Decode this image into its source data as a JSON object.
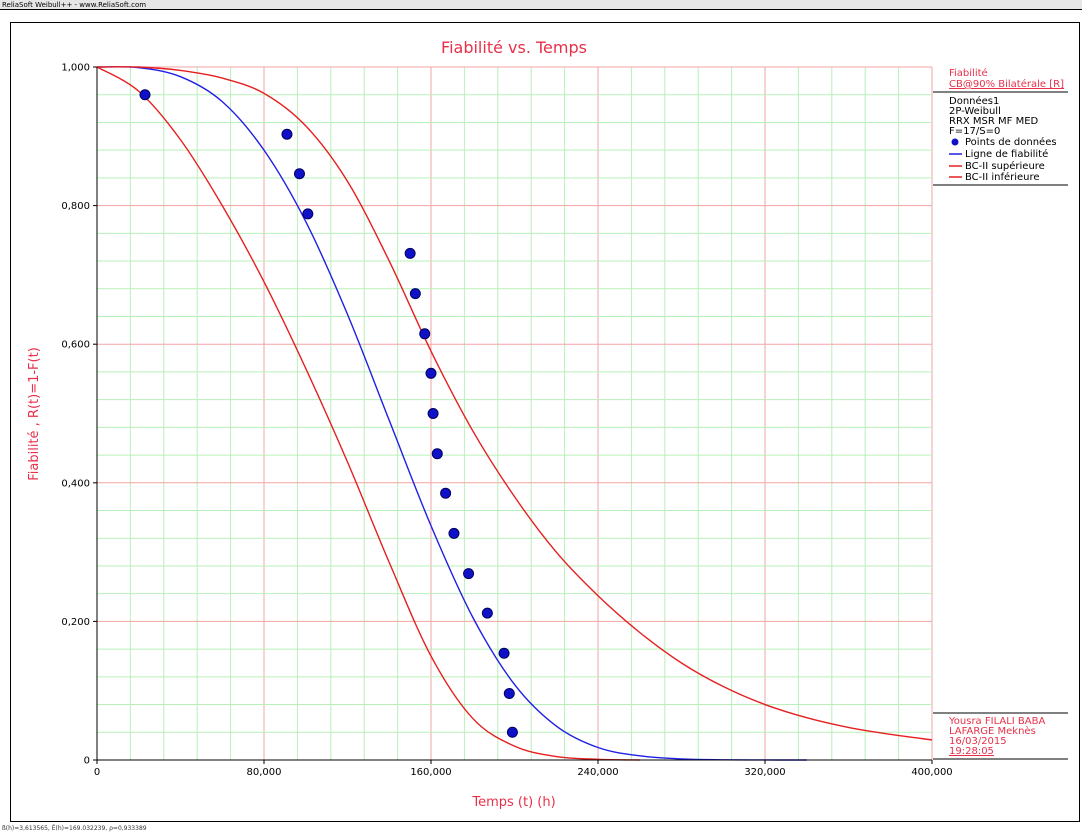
{
  "window": {
    "title_bar": "ReliaSoft Weibull++ - www.ReliaSoft.com",
    "status_bar": "ß(h)=3,613565, Ê(h)=169.032239, ρ=0,933389"
  },
  "colors": {
    "title": "#e8304a",
    "axis_label": "#e8304a",
    "minor_grid": "#b9f0b9",
    "major_grid": "#f2a4a4",
    "fit_line": "#1f1fe6",
    "bounds": "#e61f1f",
    "points_fill": "#1010c8",
    "points_edge": "#000060"
  },
  "legend": {
    "header1": "Fiabilité",
    "header2": "CB@90% Bilatérale [R]",
    "info": [
      "Données1",
      "2P-Weibull",
      "RRX MSR MF MED",
      "F=17/S=0"
    ],
    "items": [
      {
        "label": "Points de données",
        "kind": "point"
      },
      {
        "label": "Ligne de fiabilité",
        "kind": "fit"
      },
      {
        "label": "BC-II supérieure",
        "kind": "upper"
      },
      {
        "label": "BC-II inférieure",
        "kind": "lower"
      }
    ]
  },
  "footer_info": [
    "Yousra FILALI BABA",
    "LAFARGE Meknès",
    "16/03/2015",
    "19:28:05"
  ],
  "chart_data": {
    "type": "line",
    "title": "Fiabilité vs. Temps",
    "xlabel": "Temps (t) (h)",
    "ylabel": "Fiabilité , R(t)=1-F(t)",
    "xlim": [
      0,
      400000
    ],
    "ylim": [
      0,
      1
    ],
    "xticks": [
      0,
      80000,
      160000,
      240000,
      320000,
      400000
    ],
    "xtick_labels": [
      "0",
      "80,000",
      "160,000",
      "240,000",
      "320,000",
      "400,000"
    ],
    "yticks": [
      0,
      0.2,
      0.4,
      0.6,
      0.8,
      1.0
    ],
    "ytick_labels": [
      "0",
      "0,200",
      "0,400",
      "0,600",
      "0,800",
      "1,000"
    ],
    "grid": true,
    "legend_position": "right",
    "points": [
      {
        "x": 23000,
        "y": 0.96
      },
      {
        "x": 91000,
        "y": 0.903
      },
      {
        "x": 97000,
        "y": 0.846
      },
      {
        "x": 101000,
        "y": 0.788
      },
      {
        "x": 150000,
        "y": 0.731
      },
      {
        "x": 152500,
        "y": 0.673
      },
      {
        "x": 157000,
        "y": 0.615
      },
      {
        "x": 160000,
        "y": 0.558
      },
      {
        "x": 161000,
        "y": 0.5
      },
      {
        "x": 163000,
        "y": 0.442
      },
      {
        "x": 167000,
        "y": 0.385
      },
      {
        "x": 171000,
        "y": 0.327
      },
      {
        "x": 178000,
        "y": 0.269
      },
      {
        "x": 187000,
        "y": 0.212
      },
      {
        "x": 195000,
        "y": 0.154
      },
      {
        "x": 197500,
        "y": 0.096
      },
      {
        "x": 199000,
        "y": 0.04
      }
    ],
    "series": [
      {
        "name": "Ligne de fiabilité",
        "x": [
          0,
          20000,
          40000,
          60000,
          80000,
          100000,
          120000,
          140000,
          160000,
          180000,
          200000,
          220000,
          240000,
          260000,
          280000,
          300000,
          320000,
          340000
        ],
        "y": [
          1.0,
          0.999,
          0.986,
          0.95,
          0.88,
          0.777,
          0.643,
          0.49,
          0.338,
          0.206,
          0.109,
          0.049,
          0.018,
          0.006,
          0.0015,
          0.0003,
          5e-05,
          0.0
        ]
      },
      {
        "name": "BC-II supérieure",
        "x": [
          0,
          20000,
          40000,
          60000,
          80000,
          100000,
          120000,
          140000,
          160000,
          180000,
          200000,
          220000,
          240000,
          260000,
          280000,
          300000,
          320000,
          340000,
          360000,
          380000,
          400000
        ],
        "y": [
          1.0,
          1.0,
          0.995,
          0.984,
          0.962,
          0.915,
          0.835,
          0.72,
          0.59,
          0.475,
          0.38,
          0.3,
          0.237,
          0.184,
          0.14,
          0.106,
          0.08,
          0.061,
          0.047,
          0.037,
          0.029
        ]
      },
      {
        "name": "BC-II inférieure",
        "x": [
          0,
          20000,
          40000,
          60000,
          80000,
          100000,
          120000,
          140000,
          160000,
          180000,
          200000,
          220000,
          240000,
          260000
        ],
        "y": [
          1.0,
          0.965,
          0.895,
          0.8,
          0.69,
          0.565,
          0.43,
          0.285,
          0.15,
          0.06,
          0.02,
          0.005,
          0.001,
          0.0
        ]
      }
    ]
  }
}
